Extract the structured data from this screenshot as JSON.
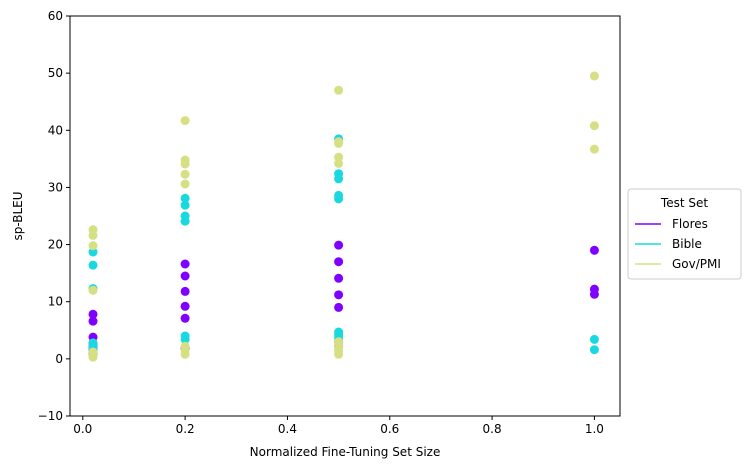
{
  "chart_data": {
    "type": "scatter",
    "xlabel": "Normalized Fine-Tuning Set Size",
    "ylabel": "sp-BLEU",
    "xlim": [
      -0.025,
      1.05
    ],
    "ylim": [
      -10,
      60
    ],
    "xticks": [
      0.0,
      0.2,
      0.4,
      0.6,
      0.8,
      1.0
    ],
    "xtick_labels": [
      "0.0",
      "0.2",
      "0.4",
      "0.6",
      "0.8",
      "1.0"
    ],
    "yticks": [
      -10,
      0,
      10,
      20,
      30,
      40,
      50,
      60
    ],
    "ytick_labels": [
      "−10",
      "0",
      "10",
      "20",
      "30",
      "40",
      "50",
      "60"
    ],
    "grid": false,
    "legend": {
      "title": "Test Set",
      "placement": "center-right-outside"
    },
    "series": [
      {
        "name": "Flores",
        "color": "#8000ff",
        "points": [
          [
            0.02,
            7.8
          ],
          [
            0.02,
            6.6
          ],
          [
            0.02,
            3.8
          ],
          [
            0.02,
            2.7
          ],
          [
            0.02,
            2.2
          ],
          [
            0.02,
            1.6
          ],
          [
            0.02,
            0.9
          ],
          [
            0.2,
            16.6
          ],
          [
            0.2,
            14.5
          ],
          [
            0.2,
            11.8
          ],
          [
            0.2,
            9.2
          ],
          [
            0.2,
            7.1
          ],
          [
            0.2,
            1.8
          ],
          [
            0.5,
            19.9
          ],
          [
            0.5,
            17.0
          ],
          [
            0.5,
            14.1
          ],
          [
            0.5,
            11.2
          ],
          [
            0.5,
            9.0
          ],
          [
            0.5,
            3.0
          ],
          [
            0.5,
            2.2
          ],
          [
            1.0,
            19.0
          ],
          [
            1.0,
            12.2
          ],
          [
            1.0,
            11.3
          ]
        ]
      },
      {
        "name": "Bible",
        "color": "#1ad8e0",
        "points": [
          [
            0.02,
            18.7
          ],
          [
            0.02,
            16.4
          ],
          [
            0.02,
            12.3
          ],
          [
            0.02,
            2.8
          ],
          [
            0.02,
            2.2
          ],
          [
            0.02,
            1.5
          ],
          [
            0.02,
            1.0
          ],
          [
            0.2,
            28.1
          ],
          [
            0.2,
            26.9
          ],
          [
            0.2,
            25.0
          ],
          [
            0.2,
            24.1
          ],
          [
            0.2,
            4.0
          ],
          [
            0.2,
            3.4
          ],
          [
            0.5,
            38.5
          ],
          [
            0.5,
            32.4
          ],
          [
            0.5,
            31.5
          ],
          [
            0.5,
            28.6
          ],
          [
            0.5,
            28.0
          ],
          [
            0.5,
            4.7
          ],
          [
            0.5,
            4.2
          ],
          [
            0.5,
            3.6
          ],
          [
            1.0,
            3.4
          ],
          [
            1.0,
            1.6
          ]
        ]
      },
      {
        "name": "Gov/PMI",
        "color": "#d6e083",
        "points": [
          [
            0.02,
            22.6
          ],
          [
            0.02,
            21.6
          ],
          [
            0.02,
            19.8
          ],
          [
            0.02,
            12.0
          ],
          [
            0.02,
            1.2
          ],
          [
            0.02,
            0.6
          ],
          [
            0.02,
            0.3
          ],
          [
            0.2,
            41.7
          ],
          [
            0.2,
            34.8
          ],
          [
            0.2,
            34.1
          ],
          [
            0.2,
            32.3
          ],
          [
            0.2,
            30.6
          ],
          [
            0.2,
            2.2
          ],
          [
            0.2,
            1.5
          ],
          [
            0.2,
            0.8
          ],
          [
            0.5,
            47.0
          ],
          [
            0.5,
            38.0
          ],
          [
            0.5,
            37.7
          ],
          [
            0.5,
            35.3
          ],
          [
            0.5,
            34.2
          ],
          [
            0.5,
            3.0
          ],
          [
            0.5,
            2.2
          ],
          [
            0.5,
            1.5
          ],
          [
            0.5,
            0.8
          ],
          [
            1.0,
            49.5
          ],
          [
            1.0,
            40.8
          ],
          [
            1.0,
            36.7
          ]
        ]
      }
    ]
  }
}
